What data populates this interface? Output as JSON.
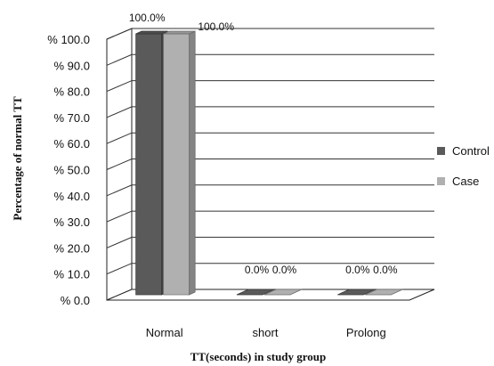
{
  "chart_data": {
    "type": "bar",
    "title": "",
    "xlabel": "TT(seconds) in study group",
    "ylabel": "Percentage of normal TT",
    "categories": [
      "Normal",
      "short",
      "Prolong"
    ],
    "series": [
      {
        "name": "Control",
        "values": [
          100.0,
          0.0,
          0.0
        ],
        "labels": [
          "100.0%",
          "0.0%",
          "0.0%"
        ],
        "color": "#5a5a5a"
      },
      {
        "name": "Case",
        "values": [
          100.0,
          0.0,
          0.0
        ],
        "labels": [
          "100.0%",
          "0.0%",
          "0.0%"
        ],
        "color": "#b0b0b0"
      }
    ],
    "ylim": [
      0,
      100
    ],
    "yticks": [
      "% 0.0",
      "% 10.0",
      "% 20.0",
      "% 30.0",
      "% 40.0",
      "% 50.0",
      "% 60.0",
      "% 70.0",
      "% 80.0",
      "% 90.0",
      "% 100.0"
    ],
    "grid": true,
    "legend_position": "right"
  }
}
